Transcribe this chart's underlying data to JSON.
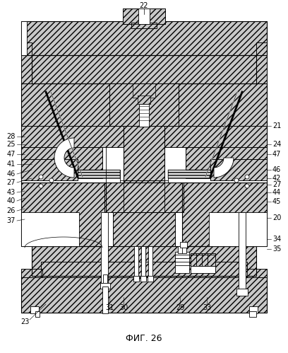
{
  "title": "ФИГ. 26",
  "title_fontsize": 9,
  "background_color": "#ffffff",
  "fig_width": 4.08,
  "fig_height": 4.99,
  "dpi": 100,
  "left_labels": [
    [
      "28",
      22,
      193
    ],
    [
      "25",
      22,
      204
    ],
    [
      "47",
      22,
      218
    ],
    [
      "41",
      22,
      232
    ],
    [
      "46",
      22,
      246
    ],
    [
      "27",
      22,
      258
    ],
    [
      "43",
      22,
      272
    ],
    [
      "40",
      22,
      284
    ],
    [
      "26",
      22,
      298
    ],
    [
      "37",
      22,
      312
    ]
  ],
  "right_labels": [
    [
      "21",
      386,
      178
    ],
    [
      "24",
      386,
      204
    ],
    [
      "47",
      386,
      218
    ],
    [
      "46",
      386,
      240
    ],
    [
      "42",
      386,
      252
    ],
    [
      "27",
      386,
      261
    ],
    [
      "44",
      386,
      272
    ],
    [
      "45",
      386,
      285
    ],
    [
      "20",
      386,
      308
    ],
    [
      "34",
      386,
      338
    ],
    [
      "35",
      386,
      352
    ]
  ],
  "bottom_labels": [
    [
      "31",
      155,
      435
    ],
    [
      "30",
      175,
      435
    ],
    [
      "29",
      255,
      435
    ],
    [
      "33",
      293,
      435
    ]
  ]
}
